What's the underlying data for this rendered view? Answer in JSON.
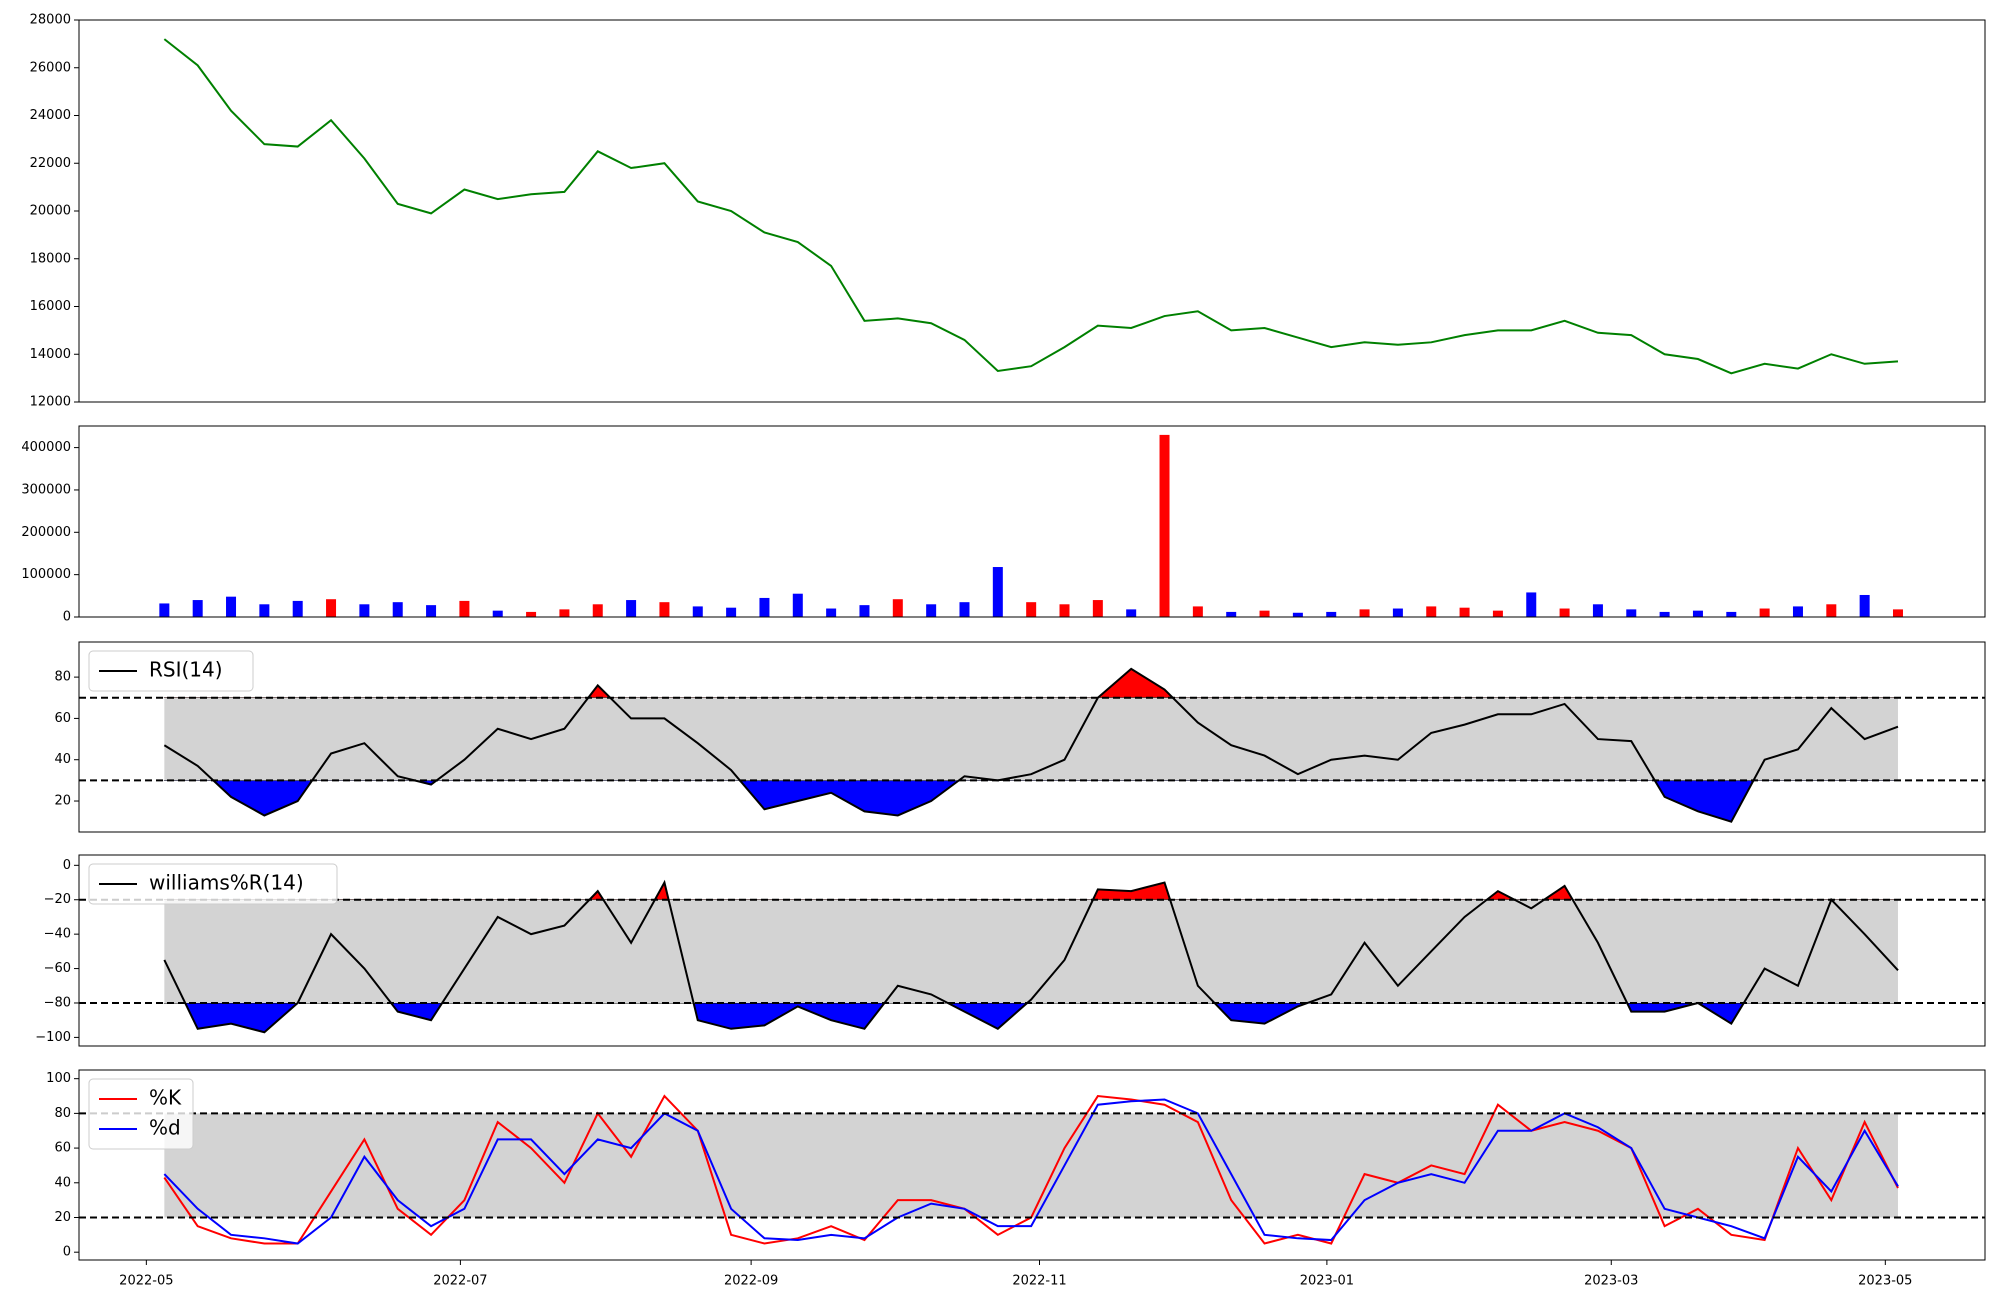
{
  "chart_data": [
    {
      "type": "line",
      "series": [
        {
          "color": "green",
          "values": [
            27200,
            26100,
            24200,
            22800,
            22700,
            23800,
            22200,
            20300,
            19900,
            20900,
            20500,
            20700,
            20800,
            22500,
            21800,
            22000,
            20400,
            20000,
            19100,
            18700,
            17700,
            15400,
            15500,
            15300,
            14600,
            13300,
            13500,
            14300,
            15200,
            15100,
            15600,
            15800,
            15000,
            15100,
            14700,
            14300,
            14500,
            14400,
            14500,
            14800,
            15000,
            15000,
            15400,
            14900,
            14800,
            14000,
            13800,
            13200,
            13600,
            13400,
            14000,
            13600,
            13700
          ]
        }
      ],
      "ylim": [
        12000,
        28000
      ],
      "yticks": [
        12000,
        14000,
        16000,
        18000,
        20000,
        22000,
        24000,
        26000,
        28000
      ]
    },
    {
      "type": "bar",
      "values": [
        32000,
        40000,
        48000,
        30000,
        38000,
        42000,
        30000,
        35000,
        28000,
        38000,
        15000,
        12000,
        18000,
        30000,
        40000,
        35000,
        25000,
        22000,
        45000,
        55000,
        20000,
        28000,
        42000,
        30000,
        35000,
        118000,
        35000,
        30000,
        40000,
        18000,
        430000,
        25000,
        12000,
        15000,
        10000,
        12000,
        18000,
        20000,
        25000,
        22000,
        15000,
        58000,
        20000,
        30000,
        18000,
        12000,
        15000,
        12000,
        20000,
        25000,
        30000,
        52000,
        18000
      ],
      "up_color": "red",
      "down_color": "blue",
      "ylim": [
        0,
        451000
      ],
      "yticks": [
        0,
        100000,
        200000,
        300000,
        400000
      ]
    },
    {
      "type": "line",
      "series": [
        {
          "name": "RSI(14)",
          "color": "black",
          "values": [
            47,
            37,
            22,
            13,
            20,
            43,
            48,
            32,
            28,
            40,
            55,
            50,
            55,
            76,
            60,
            60,
            48,
            35,
            16,
            20,
            24,
            15,
            13,
            20,
            32,
            30,
            33,
            40,
            70,
            84,
            74,
            58,
            47,
            42,
            33,
            40,
            42,
            40,
            53,
            57,
            62,
            62,
            67,
            50,
            49,
            22,
            15,
            10,
            40,
            45,
            65,
            50,
            56
          ]
        }
      ],
      "ylim": [
        5,
        97
      ],
      "yticks": [
        20,
        40,
        60,
        80
      ],
      "thresholds": [
        70,
        30
      ],
      "upper_fill": "red",
      "lower_fill": "blue",
      "band_fill": "lightgray",
      "legend": "upper left"
    },
    {
      "type": "line",
      "series": [
        {
          "name": "williams%R(14)",
          "color": "black",
          "values": [
            -55,
            -95,
            -92,
            -97,
            -80,
            -40,
            -60,
            -85,
            -90,
            -60,
            -30,
            -40,
            -35,
            -15,
            -45,
            -10,
            -90,
            -95,
            -93,
            -82,
            -90,
            -95,
            -70,
            -75,
            -85,
            -95,
            -78,
            -55,
            -14,
            -15,
            -10,
            -70,
            -90,
            -92,
            -82,
            -75,
            -45,
            -70,
            -50,
            -30,
            -15,
            -25,
            -12,
            -45,
            -85,
            -85,
            -80,
            -92,
            -60,
            -70,
            -20,
            -40,
            -61
          ]
        }
      ],
      "ylim": [
        -105,
        6
      ],
      "yticks": [
        {
          "value": -100,
          "label": "−100"
        },
        {
          "value": -80,
          "label": "−80"
        },
        {
          "value": -60,
          "label": "−60"
        },
        {
          "value": -40,
          "label": "−40"
        },
        {
          "value": -20,
          "label": "−20"
        },
        0
      ],
      "thresholds": [
        -20,
        -80
      ],
      "upper_fill": "red",
      "lower_fill": "blue",
      "band_fill": "lightgray",
      "legend": "upper left"
    },
    {
      "type": "line",
      "series": [
        {
          "name": "%K",
          "color": "red",
          "values": [
            43,
            15,
            8,
            5,
            5,
            35,
            65,
            25,
            10,
            30,
            75,
            60,
            40,
            80,
            55,
            90,
            70,
            10,
            5,
            8,
            15,
            7,
            30,
            30,
            25,
            10,
            20,
            60,
            90,
            88,
            85,
            75,
            30,
            5,
            10,
            5,
            45,
            40,
            50,
            45,
            85,
            70,
            75,
            70,
            60,
            15,
            25,
            10,
            7,
            60,
            30,
            75,
            37
          ]
        },
        {
          "name": "%d",
          "color": "blue",
          "values": [
            45,
            25,
            10,
            8,
            5,
            20,
            55,
            30,
            15,
            25,
            65,
            65,
            45,
            65,
            60,
            80,
            70,
            25,
            8,
            7,
            10,
            8,
            20,
            28,
            25,
            15,
            15,
            50,
            85,
            87,
            88,
            80,
            45,
            10,
            8,
            7,
            30,
            40,
            45,
            40,
            70,
            70,
            80,
            72,
            60,
            25,
            20,
            15,
            8,
            55,
            35,
            70,
            38
          ]
        }
      ],
      "ylim": [
        -4.5,
        105
      ],
      "yticks": [
        0,
        20,
        40,
        60,
        80,
        100
      ],
      "thresholds": [
        80,
        20
      ],
      "band_fill": "lightgray",
      "legend": "upper left",
      "xlim": [
        -2.56,
        54.61
      ],
      "xticks": [
        {
          "value": -0.54,
          "label": "2022-05"
        },
        {
          "value": 8.88,
          "label": "2022-07"
        },
        {
          "value": 17.6,
          "label": "2022-09"
        },
        {
          "value": 26.25,
          "label": "2022-11"
        },
        {
          "value": 34.87,
          "label": "2023-01"
        },
        {
          "value": 43.4,
          "label": "2023-03"
        },
        {
          "value": 51.62,
          "label": "2023-05"
        }
      ]
    }
  ]
}
